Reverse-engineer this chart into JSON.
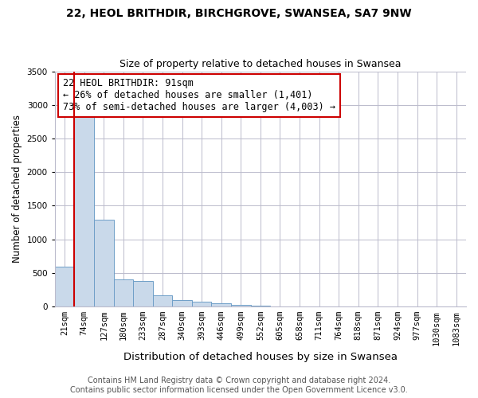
{
  "title_line1": "22, HEOL BRITHDIR, BIRCHGROVE, SWANSEA, SA7 9NW",
  "title_line2": "Size of property relative to detached houses in Swansea",
  "xlabel": "Distribution of detached houses by size in Swansea",
  "ylabel": "Number of detached properties",
  "categories": [
    "21sqm",
    "74sqm",
    "127sqm",
    "180sqm",
    "233sqm",
    "287sqm",
    "340sqm",
    "393sqm",
    "446sqm",
    "499sqm",
    "552sqm",
    "605sqm",
    "658sqm",
    "711sqm",
    "764sqm",
    "818sqm",
    "871sqm",
    "924sqm",
    "977sqm",
    "1030sqm",
    "1083sqm"
  ],
  "values": [
    590,
    2890,
    1290,
    400,
    385,
    170,
    100,
    70,
    50,
    30,
    8,
    5,
    3,
    1,
    1,
    0,
    0,
    0,
    0,
    0,
    0
  ],
  "bar_color": "#c9d9ea",
  "bar_edge_color": "#6f9fc8",
  "vline_color": "#cc0000",
  "vline_x_index": 1.0,
  "annotation_text": "22 HEOL BRITHDIR: 91sqm\n← 26% of detached houses are smaller (1,401)\n73% of semi-detached houses are larger (4,003) →",
  "annotation_box_color": "#ffffff",
  "annotation_box_edge": "#cc0000",
  "ylim": [
    0,
    3500
  ],
  "yticks": [
    0,
    500,
    1000,
    1500,
    2000,
    2500,
    3000,
    3500
  ],
  "footer1": "Contains HM Land Registry data © Crown copyright and database right 2024.",
  "footer2": "Contains public sector information licensed under the Open Government Licence v3.0.",
  "bg_color": "#ffffff",
  "grid_color": "#bbbbcc",
  "title_fontsize": 10,
  "subtitle_fontsize": 9,
  "xlabel_fontsize": 9.5,
  "ylabel_fontsize": 8.5,
  "tick_fontsize": 7.5,
  "annotation_fontsize": 8.5,
  "footer_fontsize": 7
}
